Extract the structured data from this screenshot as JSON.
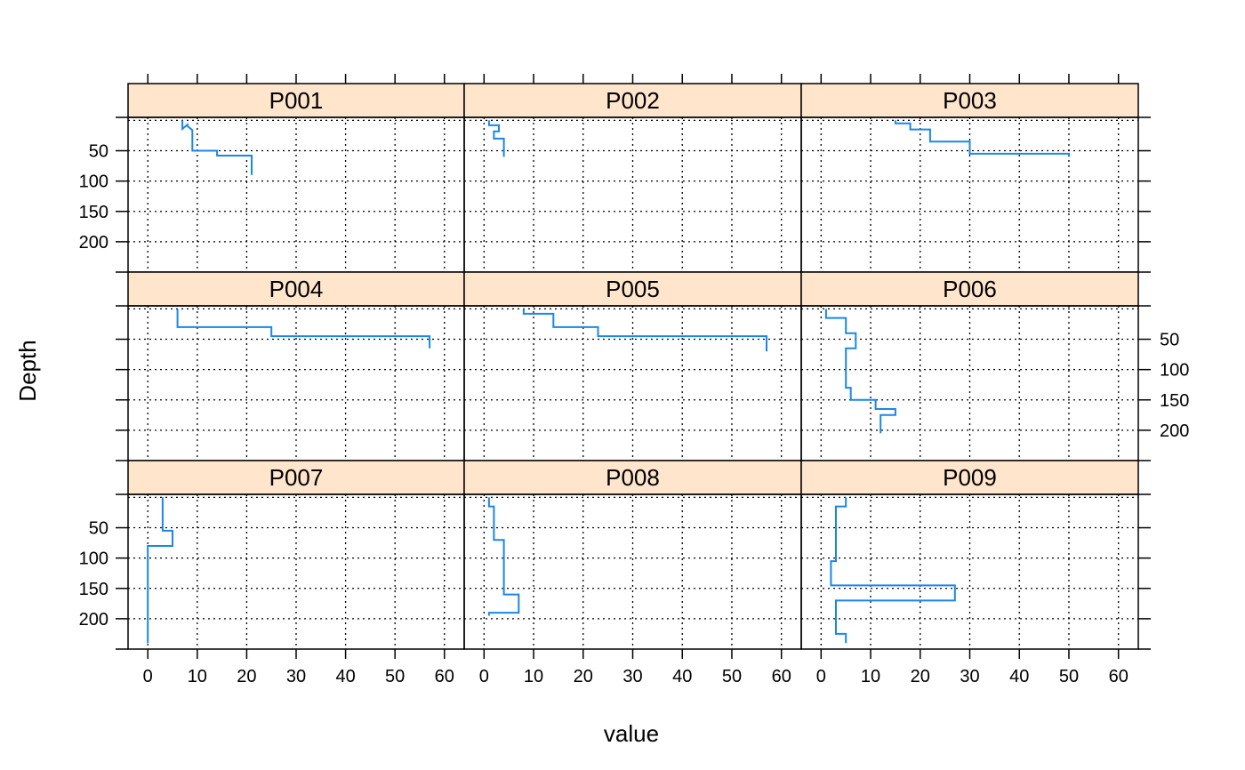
{
  "chart_data": {
    "type": "line",
    "xlabel": "value",
    "ylabel": "Depth",
    "xlim": [
      -4,
      64
    ],
    "ylim": [
      250,
      -5
    ],
    "x_ticks": [
      0,
      10,
      20,
      30,
      40,
      50,
      60
    ],
    "y_ticks": [
      50,
      100,
      150,
      200
    ],
    "grid": true,
    "colors": {
      "line": "#1a87e8",
      "strip_bg": "#ffe5cc",
      "grid": "#000000"
    },
    "layout": {
      "cols": 3,
      "rows": 3
    },
    "panels": [
      {
        "name": "P001",
        "profile": [
          [
            0,
            14,
            7
          ],
          [
            7,
            9,
            8
          ],
          [
            16,
            50,
            9
          ],
          [
            50,
            58,
            14
          ],
          [
            58,
            90,
            21
          ]
        ]
      },
      {
        "name": "P002",
        "profile": [
          [
            0,
            8,
            1
          ],
          [
            8,
            18,
            3
          ],
          [
            18,
            30,
            2
          ],
          [
            30,
            60,
            4
          ]
        ]
      },
      {
        "name": "P003",
        "profile": [
          [
            0,
            5,
            15
          ],
          [
            5,
            15,
            18
          ],
          [
            15,
            35,
            22
          ],
          [
            35,
            55,
            30
          ],
          [
            55,
            60,
            50
          ]
        ]
      },
      {
        "name": "P004",
        "profile": [
          [
            0,
            30,
            6
          ],
          [
            30,
            45,
            25
          ],
          [
            45,
            65,
            57
          ]
        ]
      },
      {
        "name": "P005",
        "profile": [
          [
            0,
            8,
            8
          ],
          [
            8,
            30,
            14
          ],
          [
            30,
            45,
            23
          ],
          [
            45,
            70,
            57
          ]
        ]
      },
      {
        "name": "P006",
        "profile": [
          [
            0,
            15,
            1
          ],
          [
            15,
            40,
            5
          ],
          [
            40,
            65,
            7
          ],
          [
            65,
            130,
            5
          ],
          [
            130,
            150,
            6
          ],
          [
            150,
            165,
            11
          ],
          [
            165,
            175,
            15
          ],
          [
            175,
            205,
            12
          ]
        ]
      },
      {
        "name": "P007",
        "profile": [
          [
            0,
            55,
            3
          ],
          [
            55,
            80,
            5
          ],
          [
            80,
            240,
            0
          ]
        ]
      },
      {
        "name": "P008",
        "profile": [
          [
            0,
            15,
            1
          ],
          [
            15,
            70,
            2
          ],
          [
            70,
            160,
            4
          ],
          [
            160,
            190,
            7
          ],
          [
            190,
            195,
            1
          ]
        ]
      },
      {
        "name": "P009",
        "profile": [
          [
            0,
            15,
            5
          ],
          [
            15,
            105,
            3
          ],
          [
            105,
            145,
            2
          ],
          [
            145,
            170,
            27
          ],
          [
            170,
            225,
            3
          ],
          [
            225,
            240,
            5
          ]
        ]
      }
    ]
  }
}
